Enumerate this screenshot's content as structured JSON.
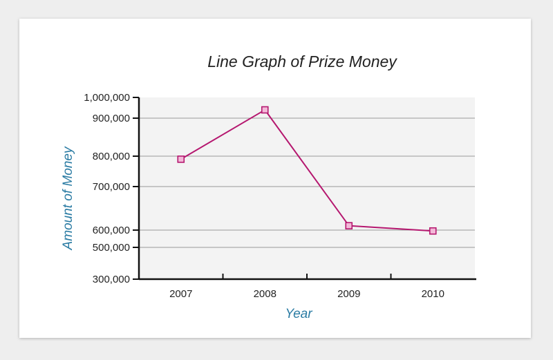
{
  "colors": {
    "line": "#b5176f",
    "marker_fill": "#f3b8d8",
    "axis_title": "#2a7ba3",
    "plot_bg": "#f3f3f3",
    "grid": "#9a9a9a"
  },
  "chart_data": {
    "type": "line",
    "title": "Line Graph of Prize Money",
    "xlabel": "Year",
    "ylabel": "Amount of Money",
    "categories": [
      "2007",
      "2008",
      "2009",
      "2010"
    ],
    "series": [
      {
        "values": [
          790000,
          940000,
          610000,
          595000
        ]
      }
    ],
    "y_ticks": [
      {
        "value": 300000,
        "label": "300,000"
      },
      {
        "value": 500000,
        "label": "500,000"
      },
      {
        "value": 600000,
        "label": "600,000"
      },
      {
        "value": 700000,
        "label": "700,000"
      },
      {
        "value": 800000,
        "label": "800,000"
      },
      {
        "value": 900000,
        "label": "900,000"
      },
      {
        "value": 1000000,
        "label": "1,000,000"
      }
    ],
    "ylim": [
      300000,
      1000000
    ],
    "y_scale": "non-uniform (tick labels unevenly spaced)",
    "grid": true,
    "legend": "none"
  }
}
